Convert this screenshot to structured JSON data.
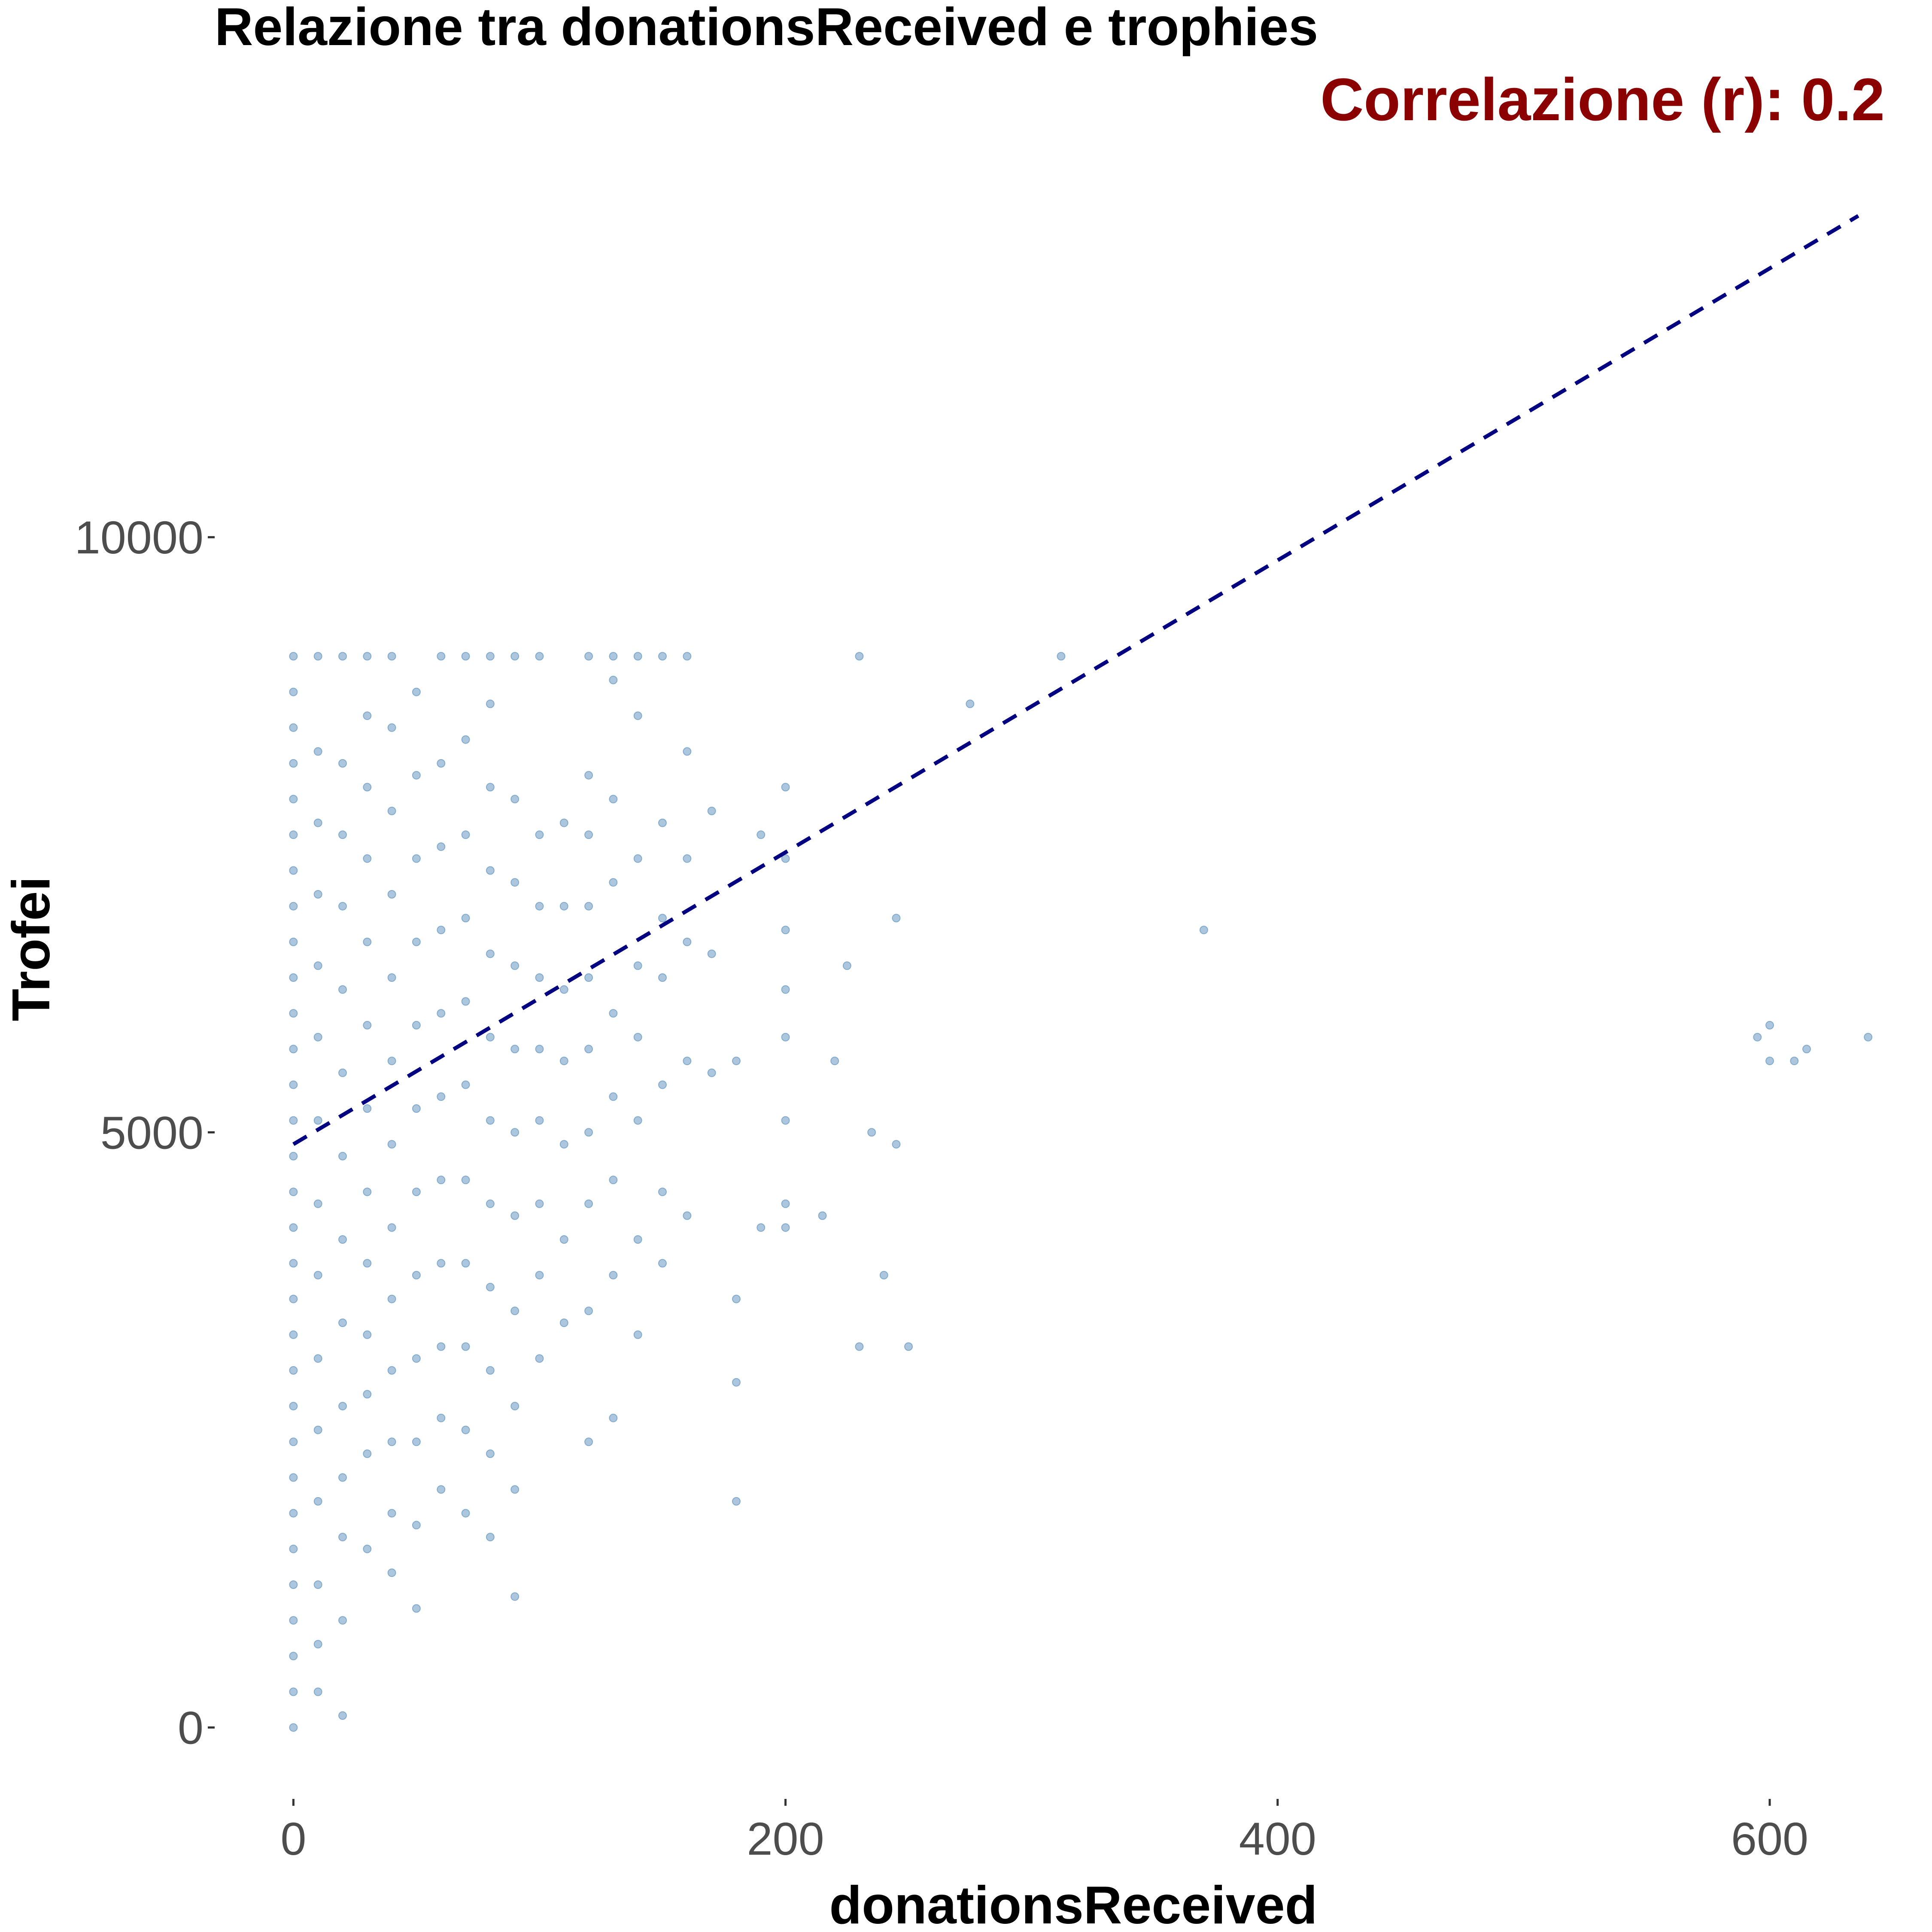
{
  "chart_data": {
    "type": "scatter",
    "title": "Relazione tra donationsReceived e trophies",
    "xlabel": "donationsReceived",
    "ylabel": "Trofei",
    "xlim": [
      -32,
      652
    ],
    "ylim": [
      -600,
      13900
    ],
    "x_ticks": [
      0,
      200,
      400,
      600
    ],
    "y_ticks": [
      0,
      5000,
      10000
    ],
    "x_tick_labels": [
      "0",
      "200",
      "400",
      "600"
    ],
    "y_tick_labels": [
      "0",
      "5000",
      "10000"
    ],
    "grid": false,
    "legend": "none",
    "point_color": "#4682b4",
    "annotation": {
      "text": "Correlazione (r): 0.2",
      "color": "#8b0000",
      "position": "top-right"
    },
    "trend_line": {
      "style": "dashed",
      "color": "#000080",
      "points": [
        [
          0,
          4900
        ],
        [
          636,
          12700
        ]
      ]
    },
    "points": [
      [
        0,
        0
      ],
      [
        0,
        300
      ],
      [
        0,
        600
      ],
      [
        0,
        900
      ],
      [
        0,
        1200
      ],
      [
        0,
        1500
      ],
      [
        0,
        1800
      ],
      [
        0,
        2100
      ],
      [
        0,
        2400
      ],
      [
        0,
        2700
      ],
      [
        0,
        3000
      ],
      [
        0,
        3300
      ],
      [
        0,
        3600
      ],
      [
        0,
        3900
      ],
      [
        0,
        4200
      ],
      [
        0,
        4500
      ],
      [
        0,
        4800
      ],
      [
        0,
        5100
      ],
      [
        0,
        5400
      ],
      [
        0,
        5700
      ],
      [
        0,
        6000
      ],
      [
        0,
        6300
      ],
      [
        0,
        6600
      ],
      [
        0,
        6900
      ],
      [
        0,
        7200
      ],
      [
        0,
        7500
      ],
      [
        0,
        7800
      ],
      [
        0,
        8100
      ],
      [
        0,
        8400
      ],
      [
        0,
        8700
      ],
      [
        0,
        9000
      ],
      [
        10,
        300
      ],
      [
        10,
        700
      ],
      [
        10,
        1200
      ],
      [
        10,
        1900
      ],
      [
        10,
        2500
      ],
      [
        10,
        3100
      ],
      [
        10,
        3800
      ],
      [
        10,
        4400
      ],
      [
        10,
        5100
      ],
      [
        10,
        5800
      ],
      [
        10,
        6400
      ],
      [
        10,
        7000
      ],
      [
        10,
        7600
      ],
      [
        10,
        8200
      ],
      [
        10,
        9000
      ],
      [
        20,
        100
      ],
      [
        20,
        900
      ],
      [
        20,
        1600
      ],
      [
        20,
        2100
      ],
      [
        20,
        2700
      ],
      [
        20,
        3400
      ],
      [
        20,
        4100
      ],
      [
        20,
        4800
      ],
      [
        20,
        5500
      ],
      [
        20,
        6200
      ],
      [
        20,
        6900
      ],
      [
        20,
        7500
      ],
      [
        20,
        8100
      ],
      [
        20,
        9000
      ],
      [
        30,
        1500
      ],
      [
        30,
        2300
      ],
      [
        30,
        2800
      ],
      [
        30,
        3300
      ],
      [
        30,
        3900
      ],
      [
        30,
        4500
      ],
      [
        30,
        5200
      ],
      [
        30,
        5900
      ],
      [
        30,
        6600
      ],
      [
        30,
        7300
      ],
      [
        30,
        7900
      ],
      [
        30,
        8500
      ],
      [
        30,
        9000
      ],
      [
        40,
        1300
      ],
      [
        40,
        1800
      ],
      [
        40,
        2400
      ],
      [
        40,
        3000
      ],
      [
        40,
        3600
      ],
      [
        40,
        4200
      ],
      [
        40,
        4900
      ],
      [
        40,
        5600
      ],
      [
        40,
        6300
      ],
      [
        40,
        7000
      ],
      [
        40,
        7700
      ],
      [
        40,
        8400
      ],
      [
        40,
        9000
      ],
      [
        50,
        1000
      ],
      [
        50,
        1700
      ],
      [
        50,
        2400
      ],
      [
        50,
        3100
      ],
      [
        50,
        3800
      ],
      [
        50,
        4500
      ],
      [
        50,
        5200
      ],
      [
        50,
        5900
      ],
      [
        50,
        6600
      ],
      [
        50,
        7300
      ],
      [
        50,
        8000
      ],
      [
        50,
        8700
      ],
      [
        60,
        2000
      ],
      [
        60,
        2600
      ],
      [
        60,
        3200
      ],
      [
        60,
        3900
      ],
      [
        60,
        4600
      ],
      [
        60,
        5300
      ],
      [
        60,
        6000
      ],
      [
        60,
        6700
      ],
      [
        60,
        7400
      ],
      [
        60,
        8100
      ],
      [
        60,
        9000
      ],
      [
        70,
        1800
      ],
      [
        70,
        2500
      ],
      [
        70,
        3200
      ],
      [
        70,
        3900
      ],
      [
        70,
        4600
      ],
      [
        70,
        5400
      ],
      [
        70,
        6100
      ],
      [
        70,
        6800
      ],
      [
        70,
        7500
      ],
      [
        70,
        8300
      ],
      [
        70,
        9000
      ],
      [
        80,
        1600
      ],
      [
        80,
        2300
      ],
      [
        80,
        3000
      ],
      [
        80,
        3700
      ],
      [
        80,
        4400
      ],
      [
        80,
        5100
      ],
      [
        80,
        5800
      ],
      [
        80,
        6500
      ],
      [
        80,
        7200
      ],
      [
        80,
        7900
      ],
      [
        80,
        8600
      ],
      [
        80,
        9000
      ],
      [
        90,
        1100
      ],
      [
        90,
        2000
      ],
      [
        90,
        2700
      ],
      [
        90,
        3500
      ],
      [
        90,
        4300
      ],
      [
        90,
        5000
      ],
      [
        90,
        5700
      ],
      [
        90,
        6400
      ],
      [
        90,
        7100
      ],
      [
        90,
        7800
      ],
      [
        90,
        9000
      ],
      [
        100,
        3100
      ],
      [
        100,
        3800
      ],
      [
        100,
        4400
      ],
      [
        100,
        5100
      ],
      [
        100,
        5700
      ],
      [
        100,
        6300
      ],
      [
        100,
        6900
      ],
      [
        100,
        7500
      ],
      [
        100,
        9000
      ],
      [
        110,
        3400
      ],
      [
        110,
        4100
      ],
      [
        110,
        4900
      ],
      [
        110,
        5600
      ],
      [
        110,
        6200
      ],
      [
        110,
        6900
      ],
      [
        110,
        7600
      ],
      [
        120,
        2400
      ],
      [
        120,
        3500
      ],
      [
        120,
        4400
      ],
      [
        120,
        5000
      ],
      [
        120,
        5700
      ],
      [
        120,
        6300
      ],
      [
        120,
        6900
      ],
      [
        120,
        7500
      ],
      [
        120,
        8000
      ],
      [
        120,
        9000
      ],
      [
        130,
        2600
      ],
      [
        130,
        3800
      ],
      [
        130,
        4600
      ],
      [
        130,
        5300
      ],
      [
        130,
        6000
      ],
      [
        130,
        7100
      ],
      [
        130,
        7800
      ],
      [
        130,
        8800
      ],
      [
        130,
        9000
      ],
      [
        140,
        3300
      ],
      [
        140,
        4100
      ],
      [
        140,
        5100
      ],
      [
        140,
        5800
      ],
      [
        140,
        6400
      ],
      [
        140,
        7300
      ],
      [
        140,
        8500
      ],
      [
        140,
        9000
      ],
      [
        150,
        3900
      ],
      [
        150,
        4500
      ],
      [
        150,
        5400
      ],
      [
        150,
        6300
      ],
      [
        150,
        6800
      ],
      [
        150,
        7600
      ],
      [
        150,
        9000
      ],
      [
        160,
        4300
      ],
      [
        160,
        5600
      ],
      [
        160,
        6600
      ],
      [
        160,
        7300
      ],
      [
        160,
        8200
      ],
      [
        160,
        9000
      ],
      [
        170,
        5500
      ],
      [
        170,
        6500
      ],
      [
        170,
        7700
      ],
      [
        180,
        1900
      ],
      [
        180,
        2900
      ],
      [
        180,
        3600
      ],
      [
        180,
        5600
      ],
      [
        190,
        4200
      ],
      [
        190,
        7500
      ],
      [
        200,
        4200
      ],
      [
        200,
        4400
      ],
      [
        200,
        5100
      ],
      [
        200,
        5800
      ],
      [
        200,
        6200
      ],
      [
        200,
        6700
      ],
      [
        200,
        7300
      ],
      [
        200,
        7900
      ],
      [
        215,
        4300
      ],
      [
        220,
        5600
      ],
      [
        225,
        6400
      ],
      [
        230,
        3200
      ],
      [
        230,
        9000
      ],
      [
        235,
        5000
      ],
      [
        240,
        3800
      ],
      [
        245,
        4900
      ],
      [
        245,
        6800
      ],
      [
        250,
        3200
      ],
      [
        275,
        8600
      ],
      [
        312,
        9000
      ],
      [
        370,
        6700
      ],
      [
        595,
        5800
      ],
      [
        600,
        5900
      ],
      [
        600,
        5600
      ],
      [
        610,
        5600
      ],
      [
        615,
        5700
      ],
      [
        640,
        5800
      ]
    ]
  }
}
